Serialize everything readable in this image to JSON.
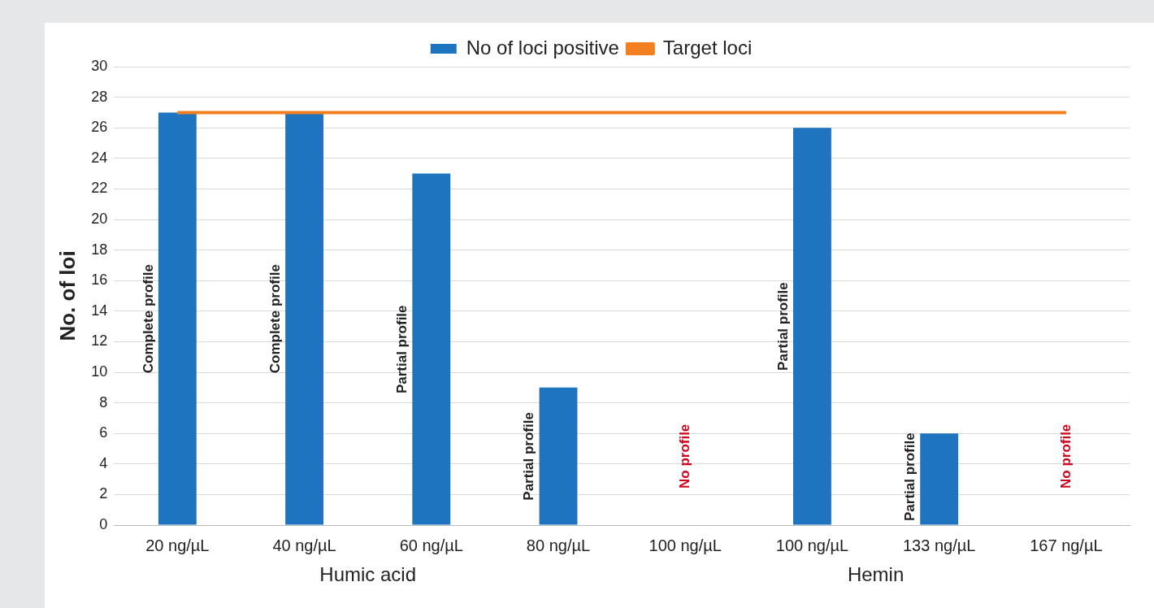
{
  "chart_data": {
    "type": "bar",
    "ylabel": "No. of loi",
    "categories": [
      "20 ng/µL",
      "40 ng/µL",
      "60 ng/µL",
      "80 ng/µL",
      "100 ng/µL",
      "100 ng/µL",
      "133 ng/µL",
      "167 ng/µL"
    ],
    "series": [
      {
        "name": "No of loci positive",
        "color": "#1f74bf",
        "values": [
          27,
          27,
          23,
          9,
          0,
          26,
          6,
          0
        ],
        "value_labels": [
          "Complete profile",
          "Complete profile",
          "Partial profile",
          "Partial profile",
          "No profile",
          "Partial profile",
          "Partial profile",
          "No profile"
        ]
      },
      {
        "name": "Target loci",
        "type": "line",
        "color": "#f28021",
        "values": [
          27,
          27,
          27,
          27,
          27,
          27,
          27,
          27
        ]
      }
    ],
    "ylim": [
      0,
      30
    ],
    "yticks": [
      0,
      2,
      4,
      6,
      8,
      10,
      12,
      14,
      16,
      18,
      20,
      22,
      24,
      26,
      28,
      30
    ],
    "grid": "y",
    "legend": "top",
    "marker": "none",
    "annotations": [
      "Humic acid",
      "Hemin"
    ]
  }
}
